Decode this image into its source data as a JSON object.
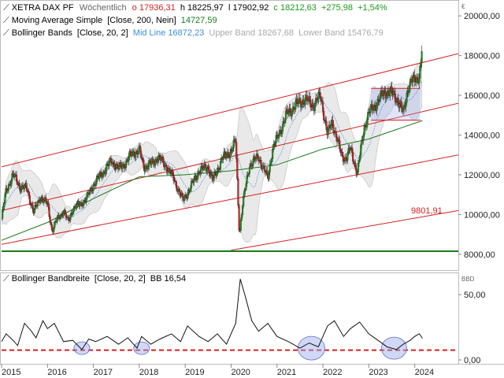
{
  "main_panel": {
    "legend": [
      {
        "name": "XETRA DAX PF",
        "period": "Wöchentlich",
        "ohlc": [
          {
            "k": "o",
            "v": "17936,31"
          },
          {
            "k": "h",
            "v": "18225,97"
          },
          {
            "k": "l",
            "v": "17902,92"
          },
          {
            "k": "c",
            "v": "18212,63"
          }
        ],
        "change": "+275,98",
        "change_pct": "+1,54%"
      },
      {
        "name": "Moving Average Simple",
        "params": "[Close, 200, Nein]",
        "value": "14727,59",
        "color": "#1a7a1a"
      },
      {
        "name": "Bollinger Bands",
        "params": "[Close, 20, 2]",
        "mid_label": "Mid Line",
        "mid_value": "16872,23",
        "upper_label": "Upper Band",
        "upper_value": "18267,68",
        "lower_label": "Lower Band",
        "lower_value": "15476,79"
      }
    ],
    "unit_label": "€",
    "price_annotation": "9801,91"
  },
  "bb_panel": {
    "legend": {
      "name": "Bollinger Bandbreite",
      "params": "[Close, 20, 2]",
      "label": "BB",
      "value": "16,54"
    },
    "unit_label": "BBD"
  },
  "colors": {
    "up": "#1a9a1a",
    "down": "#d42020",
    "channel": "#d42020",
    "ma": "#1a7a1a",
    "bb_fill": "#e9e9e9",
    "mid": "#3a8fd8",
    "highlight": "#9aa8ee"
  },
  "chart_data": [
    {
      "type": "candlestick",
      "title": "XETRA DAX PF",
      "x_ticks": [
        "2015",
        "2016",
        "2017",
        "2018",
        "2019",
        "2020",
        "2021",
        "2022",
        "2023",
        "2024"
      ],
      "y_ticks": [
        "20000,00",
        "18000,00",
        "16000,00",
        "14000,00",
        "12000,00",
        "10000,00",
        "8000,00"
      ],
      "ylim": [
        7200,
        20800
      ],
      "xlim": [
        2015.0,
        2024.95
      ],
      "close_series": [
        [
          2015.0,
          9800
        ],
        [
          2015.1,
          11200
        ],
        [
          2015.25,
          12000
        ],
        [
          2015.4,
          11400
        ],
        [
          2015.55,
          11300
        ],
        [
          2015.7,
          10100
        ],
        [
          2015.85,
          10900
        ],
        [
          2016.0,
          10500
        ],
        [
          2016.1,
          9200
        ],
        [
          2016.2,
          9700
        ],
        [
          2016.35,
          10200
        ],
        [
          2016.45,
          9600
        ],
        [
          2016.55,
          10300
        ],
        [
          2016.7,
          10500
        ],
        [
          2016.85,
          10800
        ],
        [
          2017.0,
          11500
        ],
        [
          2017.2,
          12100
        ],
        [
          2017.4,
          12700
        ],
        [
          2017.55,
          12300
        ],
        [
          2017.7,
          12600
        ],
        [
          2017.85,
          13100
        ],
        [
          2018.0,
          13200
        ],
        [
          2018.1,
          12400
        ],
        [
          2018.3,
          12600
        ],
        [
          2018.4,
          12900
        ],
        [
          2018.6,
          12400
        ],
        [
          2018.75,
          11800
        ],
        [
          2018.95,
          10700
        ],
        [
          2019.1,
          11300
        ],
        [
          2019.3,
          12200
        ],
        [
          2019.5,
          12400
        ],
        [
          2019.6,
          11700
        ],
        [
          2019.8,
          12800
        ],
        [
          2020.0,
          13200
        ],
        [
          2020.1,
          13700
        ],
        [
          2020.18,
          9000
        ],
        [
          2020.25,
          10500
        ],
        [
          2020.4,
          12500
        ],
        [
          2020.6,
          12900
        ],
        [
          2020.8,
          11800
        ],
        [
          2020.9,
          13300
        ],
        [
          2021.0,
          13800
        ],
        [
          2021.2,
          15000
        ],
        [
          2021.4,
          15500
        ],
        [
          2021.6,
          15800
        ],
        [
          2021.8,
          15500
        ],
        [
          2021.95,
          16000
        ],
        [
          2022.1,
          14000
        ],
        [
          2022.2,
          14700
        ],
        [
          2022.4,
          13000
        ],
        [
          2022.5,
          12800
        ],
        [
          2022.6,
          13300
        ],
        [
          2022.75,
          12100
        ],
        [
          2022.9,
          14400
        ],
        [
          2023.0,
          15100
        ],
        [
          2023.2,
          15700
        ],
        [
          2023.35,
          16200
        ],
        [
          2023.5,
          16100
        ],
        [
          2023.6,
          15900
        ],
        [
          2023.75,
          15100
        ],
        [
          2023.85,
          16400
        ],
        [
          2023.95,
          16700
        ],
        [
          2024.1,
          17000
        ],
        [
          2024.17,
          18213
        ]
      ],
      "moving_average_200": [
        [
          2015.0,
          8700
        ],
        [
          2016.0,
          9600
        ],
        [
          2017.0,
          10800
        ],
        [
          2018.0,
          11900
        ],
        [
          2019.0,
          12000
        ],
        [
          2020.0,
          12200
        ],
        [
          2021.0,
          12500
        ],
        [
          2022.0,
          13300
        ],
        [
          2023.0,
          13800
        ],
        [
          2024.17,
          14728
        ]
      ],
      "bollinger": {
        "period": 20,
        "mult": 2,
        "last_upper": 18267.68,
        "last_mid": 16872.23,
        "last_lower": 15476.79
      },
      "trend_channel": [
        {
          "from": [
            2015.0,
            10200
          ],
          "to": [
            2024.95,
            15600
          ]
        },
        {
          "from": [
            2015.0,
            12400
          ],
          "to": [
            2024.95,
            18100
          ]
        },
        {
          "from": [
            2015.0,
            8500
          ],
          "to": [
            2024.95,
            13000
          ]
        },
        {
          "from": [
            2020.0,
            8200
          ],
          "to": [
            2024.95,
            10200
          ]
        }
      ],
      "horizontal_line": 8150,
      "annotation": {
        "text": "9801,91",
        "value": 9801.91
      }
    },
    {
      "type": "line",
      "title": "Bollinger Bandbreite",
      "y_ticks": [
        "50,00",
        "0,00"
      ],
      "ylim": [
        -3,
        67
      ],
      "series": [
        {
          "name": "BB",
          "values_xy": [
            [
              2015.0,
              14
            ],
            [
              2015.1,
              20
            ],
            [
              2015.25,
              15
            ],
            [
              2015.35,
              11
            ],
            [
              2015.5,
              28
            ],
            [
              2015.65,
              22
            ],
            [
              2015.75,
              17
            ],
            [
              2015.9,
              30
            ],
            [
              2016.0,
              24
            ],
            [
              2016.15,
              28
            ],
            [
              2016.35,
              14
            ],
            [
              2016.55,
              15
            ],
            [
              2016.75,
              8
            ],
            [
              2016.9,
              16
            ],
            [
              2017.05,
              14
            ],
            [
              2017.3,
              18
            ],
            [
              2017.55,
              12
            ],
            [
              2017.75,
              17
            ],
            [
              2017.95,
              9
            ],
            [
              2018.05,
              18
            ],
            [
              2018.25,
              12
            ],
            [
              2018.45,
              16
            ],
            [
              2018.7,
              20
            ],
            [
              2018.9,
              14
            ],
            [
              2019.05,
              26
            ],
            [
              2019.3,
              18
            ],
            [
              2019.5,
              14
            ],
            [
              2019.7,
              20
            ],
            [
              2019.9,
              12
            ],
            [
              2020.1,
              28
            ],
            [
              2020.2,
              62
            ],
            [
              2020.3,
              50
            ],
            [
              2020.45,
              30
            ],
            [
              2020.6,
              22
            ],
            [
              2020.8,
              28
            ],
            [
              2021.0,
              18
            ],
            [
              2021.25,
              14
            ],
            [
              2021.5,
              9
            ],
            [
              2021.7,
              13
            ],
            [
              2021.9,
              10
            ],
            [
              2022.1,
              26
            ],
            [
              2022.25,
              30
            ],
            [
              2022.45,
              18
            ],
            [
              2022.6,
              24
            ],
            [
              2022.8,
              29
            ],
            [
              2023.0,
              20
            ],
            [
              2023.2,
              15
            ],
            [
              2023.4,
              10
            ],
            [
              2023.6,
              8
            ],
            [
              2023.75,
              12
            ],
            [
              2023.9,
              15
            ],
            [
              2024.0,
              18
            ],
            [
              2024.1,
              20
            ],
            [
              2024.17,
              16.54
            ]
          ]
        }
      ],
      "threshold": 7.5
    }
  ]
}
